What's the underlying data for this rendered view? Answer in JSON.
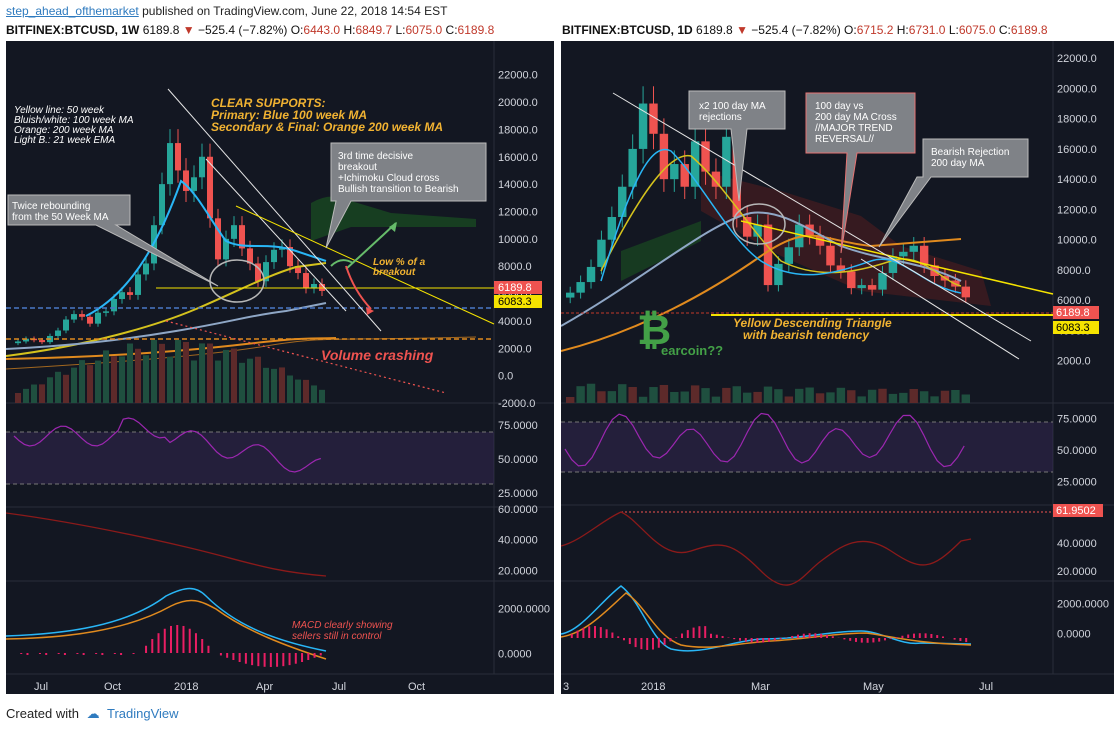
{
  "header": {
    "author": "step_ahead_ofthemarket",
    "published": "published on TradingView.com, June 22, 2018 14:54 EST"
  },
  "left": {
    "symbol": "BITFINEX:BTCUSD, 1W",
    "last": "6189.8",
    "change": "−525.4 (−7.82%)",
    "open": "6443.0",
    "high": "6849.7",
    "low": "6075.0",
    "close": "6189.8"
  },
  "right": {
    "symbol": "BITFINEX:BTCUSD, 1D",
    "last": "6189.8",
    "change": "−525.4 (−7.82%)",
    "open": "6715.2",
    "high": "6731.0",
    "low": "6075.0",
    "close": "6189.8"
  },
  "annotations": {
    "legend": [
      "Yellow line: 50 week",
      "Bluish/white: 100 week MA",
      "Orange: 200 week MA",
      "Light B.: 21 week EMA"
    ],
    "supports": [
      "CLEAR SUPPORTS:",
      "Primary: Blue 100 week MA",
      "Secondary & Final: Orange 200 week MA"
    ],
    "rebound": [
      "Twice rebounding",
      "from the 50 Week MA"
    ],
    "decisive": [
      "3rd time decisive",
      "breakout",
      "+Ichimoku Cloud cross",
      "Bullish transition to Bearish"
    ],
    "low_pct": [
      "Low % of a",
      "breakout"
    ],
    "volume": "Volume crashing",
    "macd": [
      "MACD clearly showing",
      "sellers still in control"
    ],
    "rejections": [
      "x2 100 day MA",
      "rejections"
    ],
    "cross": [
      "100 day vs",
      "200 day MA Cross",
      "//MAJOR TREND",
      "REVERSAL//"
    ],
    "bearish": [
      "Bearish Rejection",
      "200 day MA"
    ],
    "triangle": [
      "Yellow Descending Triangle",
      "with bearish tendency"
    ],
    "bearcoin": "earcoin??",
    "btc_symbol": "₿"
  },
  "price_tags": {
    "last": "6189.8",
    "support": "6083.3",
    "rsi_level": "61.9502"
  },
  "colors": {
    "background": "#131722",
    "up": "#26a69a",
    "down": "#ef5350",
    "ma50": "#d4c21d",
    "ma100": "#8fa7c6",
    "ma200": "#e08a1e",
    "ema21": "#29b6f6",
    "annotation": "#f0b232",
    "rsi": "#9c27b0",
    "bitcoin": "#43a047"
  },
  "footer": {
    "created": "Created with",
    "brand": "TradingView"
  },
  "chart_data": [
    {
      "type": "candlestick",
      "title": "BITFINEX:BTCUSD, 1W",
      "ylim": [
        -2000,
        23000
      ],
      "y_ticks": [
        "22000.0",
        "20000.0",
        "18000.0",
        "16000.0",
        "14000.0",
        "12000.0",
        "10000.0",
        "8000.0",
        "6000.0",
        "4000.0",
        "2000.0",
        "0.0",
        "-2000.0"
      ],
      "x_ticks": [
        "Jul",
        "Oct",
        "2018",
        "Apr",
        "Jul",
        "Oct"
      ],
      "close": [
        2500,
        2700,
        2600,
        2450,
        2900,
        3300,
        4100,
        4500,
        4300,
        3800,
        4600,
        4700,
        5600,
        6100,
        5900,
        7400,
        8200,
        11000,
        14000,
        17000,
        15000,
        13500,
        14500,
        16000,
        11500,
        8500,
        10000,
        11000,
        9300,
        8200,
        6900,
        8300,
        9200,
        9400,
        8000,
        7500,
        6400,
        6700,
        6190
      ],
      "indicators": [
        "RSI",
        "Stochastic",
        "MACD"
      ],
      "rsi_levels": [
        "75.0000",
        "50.0000",
        "25.0000"
      ],
      "stoch_levels": [
        "60.0000",
        "40.0000",
        "20.0000"
      ],
      "macd_levels": [
        "2000.0000",
        "0.0000"
      ]
    },
    {
      "type": "candlestick",
      "title": "BITFINEX:BTCUSD, 1D",
      "ylim": [
        0,
        23000
      ],
      "y_ticks": [
        "22000.0",
        "20000.0",
        "18000.0",
        "16000.0",
        "14000.0",
        "12000.0",
        "10000.0",
        "8000.0",
        "6000.0",
        "4000.0",
        "2000.0"
      ],
      "x_ticks": [
        "3",
        "2018",
        "Mar",
        "May",
        "Jul"
      ],
      "close": [
        6500,
        7200,
        8200,
        10000,
        11500,
        13500,
        16000,
        19000,
        17000,
        14000,
        15000,
        13500,
        16500,
        14500,
        13500,
        16800,
        11500,
        10200,
        11000,
        7000,
        8400,
        9500,
        11000,
        10300,
        9600,
        8300,
        7900,
        6800,
        7000,
        6700,
        7800,
        8900,
        9200,
        9600,
        8300,
        7600,
        7300,
        6900,
        6190
      ],
      "indicators": [
        "RSI",
        "Stochastic",
        "MACD"
      ],
      "rsi_levels": [
        "75.0000",
        "50.0000",
        "25.0000"
      ],
      "stoch_levels": [
        "40.0000",
        "20.0000"
      ],
      "macd_levels": [
        "2000.0000",
        "0.0000"
      ]
    }
  ]
}
